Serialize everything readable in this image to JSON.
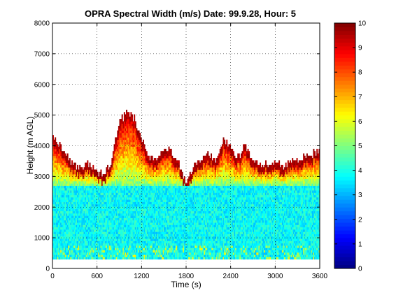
{
  "chart_data": {
    "type": "heatmap",
    "title": "OPRA Spectral Width (m/s)  Date: 99.9.28, Hour: 5",
    "xlabel": "Time (s)",
    "ylabel": "Height (m AGL)",
    "xlim": [
      0,
      3600
    ],
    "ylim": [
      0,
      8000
    ],
    "xticks": [
      "0",
      "600",
      "1200",
      "1800",
      "2400",
      "3000",
      "3600"
    ],
    "yticks": [
      "0",
      "1000",
      "2000",
      "3000",
      "4000",
      "5000",
      "6000",
      "7000",
      "8000"
    ],
    "grid": true,
    "colorbar": {
      "min": 0,
      "max": 10,
      "ticks": [
        "0",
        "1",
        "2",
        "3",
        "4",
        "5",
        "6",
        "7",
        "8",
        "9",
        "10"
      ],
      "colormap": "jet"
    },
    "data_bottom_m": 300,
    "bands": [
      {
        "name": "lower layer",
        "from": 300,
        "to": 2700,
        "value": 3.8
      },
      {
        "name": "transition",
        "from": 2700,
        "to_top_of_echo": true,
        "value_range": [
          5,
          9
        ]
      },
      {
        "name": "echo top",
        "value": 9.5
      }
    ],
    "echo_top_profile": {
      "time_s": [
        0,
        100,
        200,
        300,
        400,
        500,
        600,
        700,
        800,
        900,
        1000,
        1100,
        1200,
        1300,
        1400,
        1500,
        1600,
        1700,
        1800,
        1900,
        2000,
        2100,
        2200,
        2300,
        2400,
        2500,
        2600,
        2700,
        2800,
        2900,
        3000,
        3100,
        3200,
        3300,
        3400,
        3500,
        3600
      ],
      "top_m": [
        4300,
        4000,
        3600,
        3300,
        3200,
        3400,
        3100,
        3000,
        3500,
        4800,
        5000,
        4900,
        4200,
        3600,
        3500,
        3900,
        3800,
        3400,
        2800,
        3300,
        3500,
        3700,
        3500,
        4200,
        3900,
        3600,
        4000,
        3500,
        3300,
        3400,
        3400,
        3300,
        3400,
        3500,
        3600,
        3700,
        3800
      ]
    }
  }
}
